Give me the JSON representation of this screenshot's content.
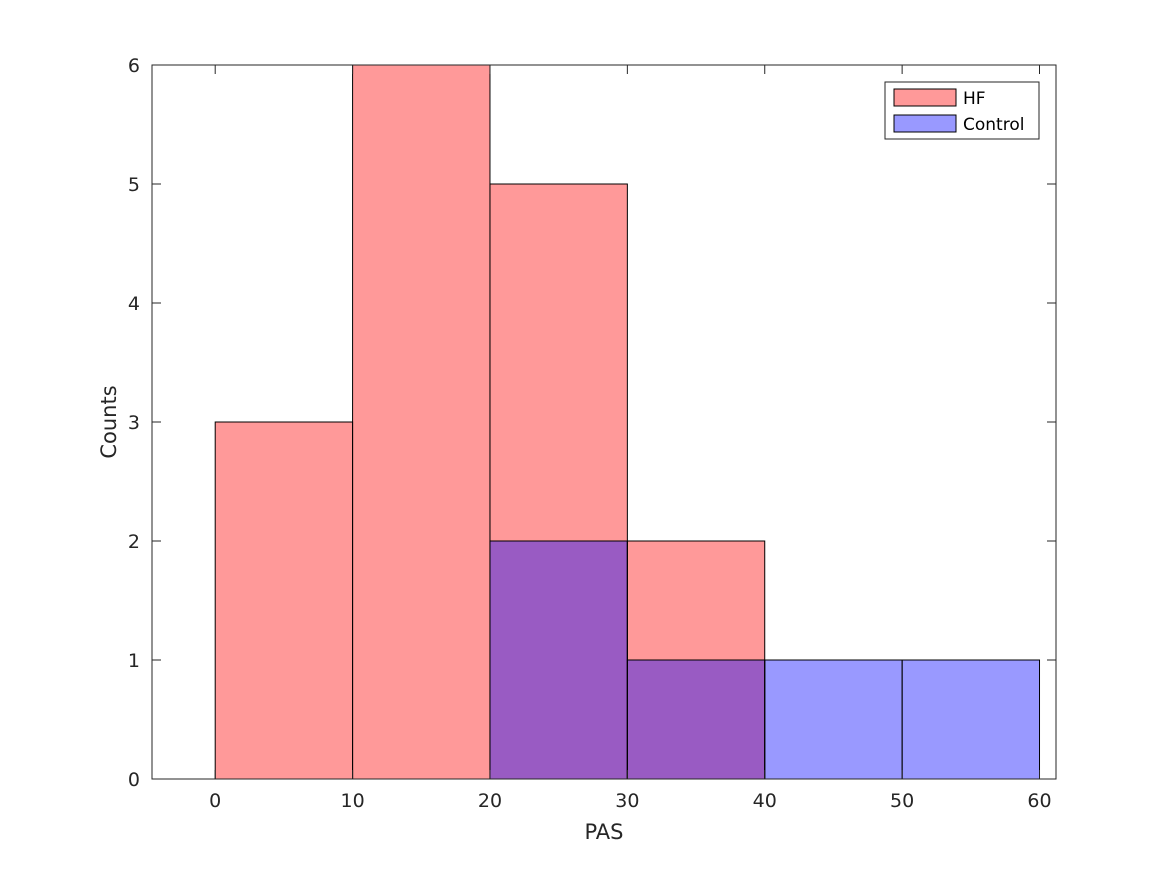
{
  "chart_data": {
    "type": "bar",
    "subtype": "overlaid-histogram",
    "xlabel": "PAS",
    "ylabel": "Counts",
    "xlim": [
      -4.6,
      61.2
    ],
    "ylim": [
      0,
      6
    ],
    "xticks": [
      0,
      10,
      20,
      30,
      40,
      50,
      60
    ],
    "yticks": [
      0,
      1,
      2,
      3,
      4,
      5,
      6
    ],
    "grid": false,
    "legend_position": "top-right",
    "series": [
      {
        "name": "HF",
        "color": "#ff9999",
        "bins": [
          {
            "x0": 0,
            "x1": 10,
            "count": 3
          },
          {
            "x0": 10,
            "x1": 20,
            "count": 6
          },
          {
            "x0": 20,
            "x1": 30,
            "count": 5
          },
          {
            "x0": 30,
            "x1": 40,
            "count": 2
          }
        ]
      },
      {
        "name": "Control",
        "color": "#9999ff",
        "bins": [
          {
            "x0": 20,
            "x1": 30,
            "count": 2
          },
          {
            "x0": 30,
            "x1": 40,
            "count": 1
          },
          {
            "x0": 40,
            "x1": 50,
            "count": 1
          },
          {
            "x0": 50,
            "x1": 60,
            "count": 1
          }
        ]
      }
    ],
    "overlap_color": "#995bc3"
  }
}
